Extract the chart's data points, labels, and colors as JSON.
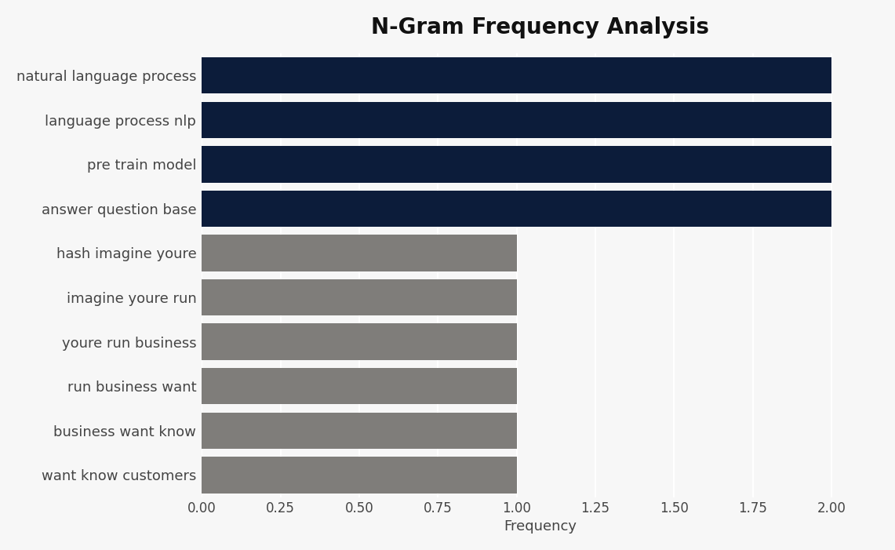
{
  "title": "N-Gram Frequency Analysis",
  "categories": [
    "want know customers",
    "business want know",
    "run business want",
    "youre run business",
    "imagine youre run",
    "hash imagine youre",
    "answer question base",
    "pre train model",
    "language process nlp",
    "natural language process"
  ],
  "values": [
    1,
    1,
    1,
    1,
    1,
    1,
    2,
    2,
    2,
    2
  ],
  "colors": [
    "#7f7d7a",
    "#7f7d7a",
    "#7f7d7a",
    "#7f7d7a",
    "#7f7d7a",
    "#7f7d7a",
    "#0c1c3a",
    "#0c1c3a",
    "#0c1c3a",
    "#0c1c3a"
  ],
  "xlabel": "Frequency",
  "xlim": [
    0,
    2.15
  ],
  "xticks": [
    0.0,
    0.25,
    0.5,
    0.75,
    1.0,
    1.25,
    1.5,
    1.75,
    2.0
  ],
  "background_color": "#f7f7f7",
  "title_fontsize": 20,
  "label_fontsize": 13,
  "tick_fontsize": 12,
  "bar_height": 0.82
}
